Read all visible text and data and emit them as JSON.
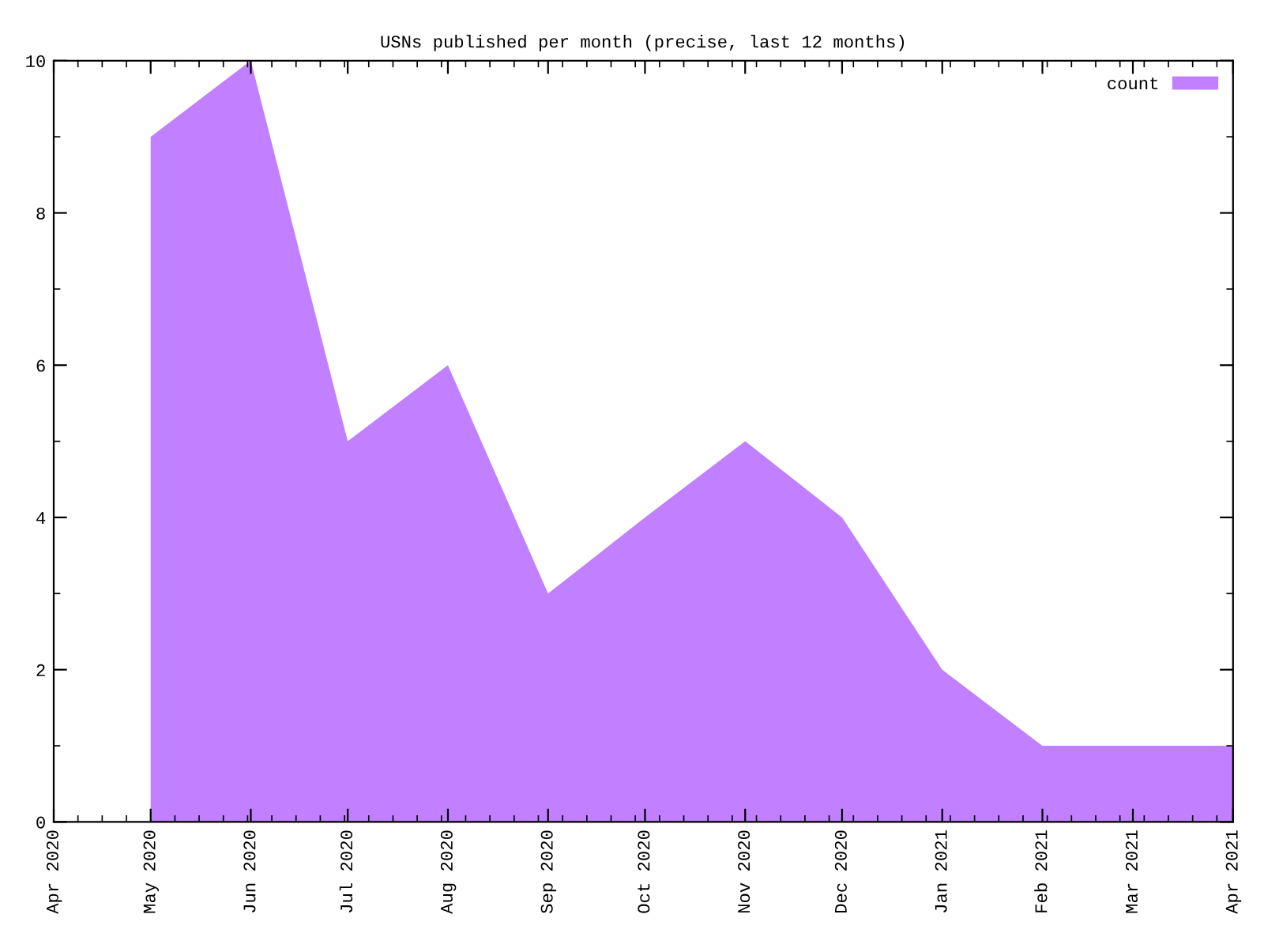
{
  "chart_data": {
    "type": "area",
    "title": "USNs published per month (precise, last 12 months)",
    "x": [
      "2020-05",
      "2020-06",
      "2020-07",
      "2020-08",
      "2020-09",
      "2020-10",
      "2020-11",
      "2020-12",
      "2021-01",
      "2021-02",
      "2021-03",
      "2021-04"
    ],
    "series": [
      {
        "name": "count",
        "color": "#c080ff",
        "values": [
          9,
          10,
          5,
          6,
          3,
          4,
          5,
          4,
          2,
          1,
          1,
          1
        ]
      }
    ],
    "xlim": [
      "2020-04",
      "2021-04"
    ],
    "xticks": [
      {
        "value": "2020-04",
        "label": "Apr 2020"
      },
      {
        "value": "2020-05",
        "label": "May 2020"
      },
      {
        "value": "2020-06",
        "label": "Jun 2020"
      },
      {
        "value": "2020-07",
        "label": "Jul 2020"
      },
      {
        "value": "2020-08",
        "label": "Aug 2020"
      },
      {
        "value": "2020-09",
        "label": "Sep 2020"
      },
      {
        "value": "2020-10",
        "label": "Oct 2020"
      },
      {
        "value": "2020-11",
        "label": "Nov 2020"
      },
      {
        "value": "2020-12",
        "label": "Dec 2020"
      },
      {
        "value": "2021-01",
        "label": "Jan 2021"
      },
      {
        "value": "2021-02",
        "label": "Feb 2021"
      },
      {
        "value": "2021-03",
        "label": "Mar 2021"
      },
      {
        "value": "2021-04",
        "label": "Apr 2021"
      }
    ],
    "ylim": [
      0,
      10
    ],
    "yticks": [
      0,
      2,
      4,
      6,
      8,
      10
    ],
    "grid": false,
    "legend": "top right"
  }
}
